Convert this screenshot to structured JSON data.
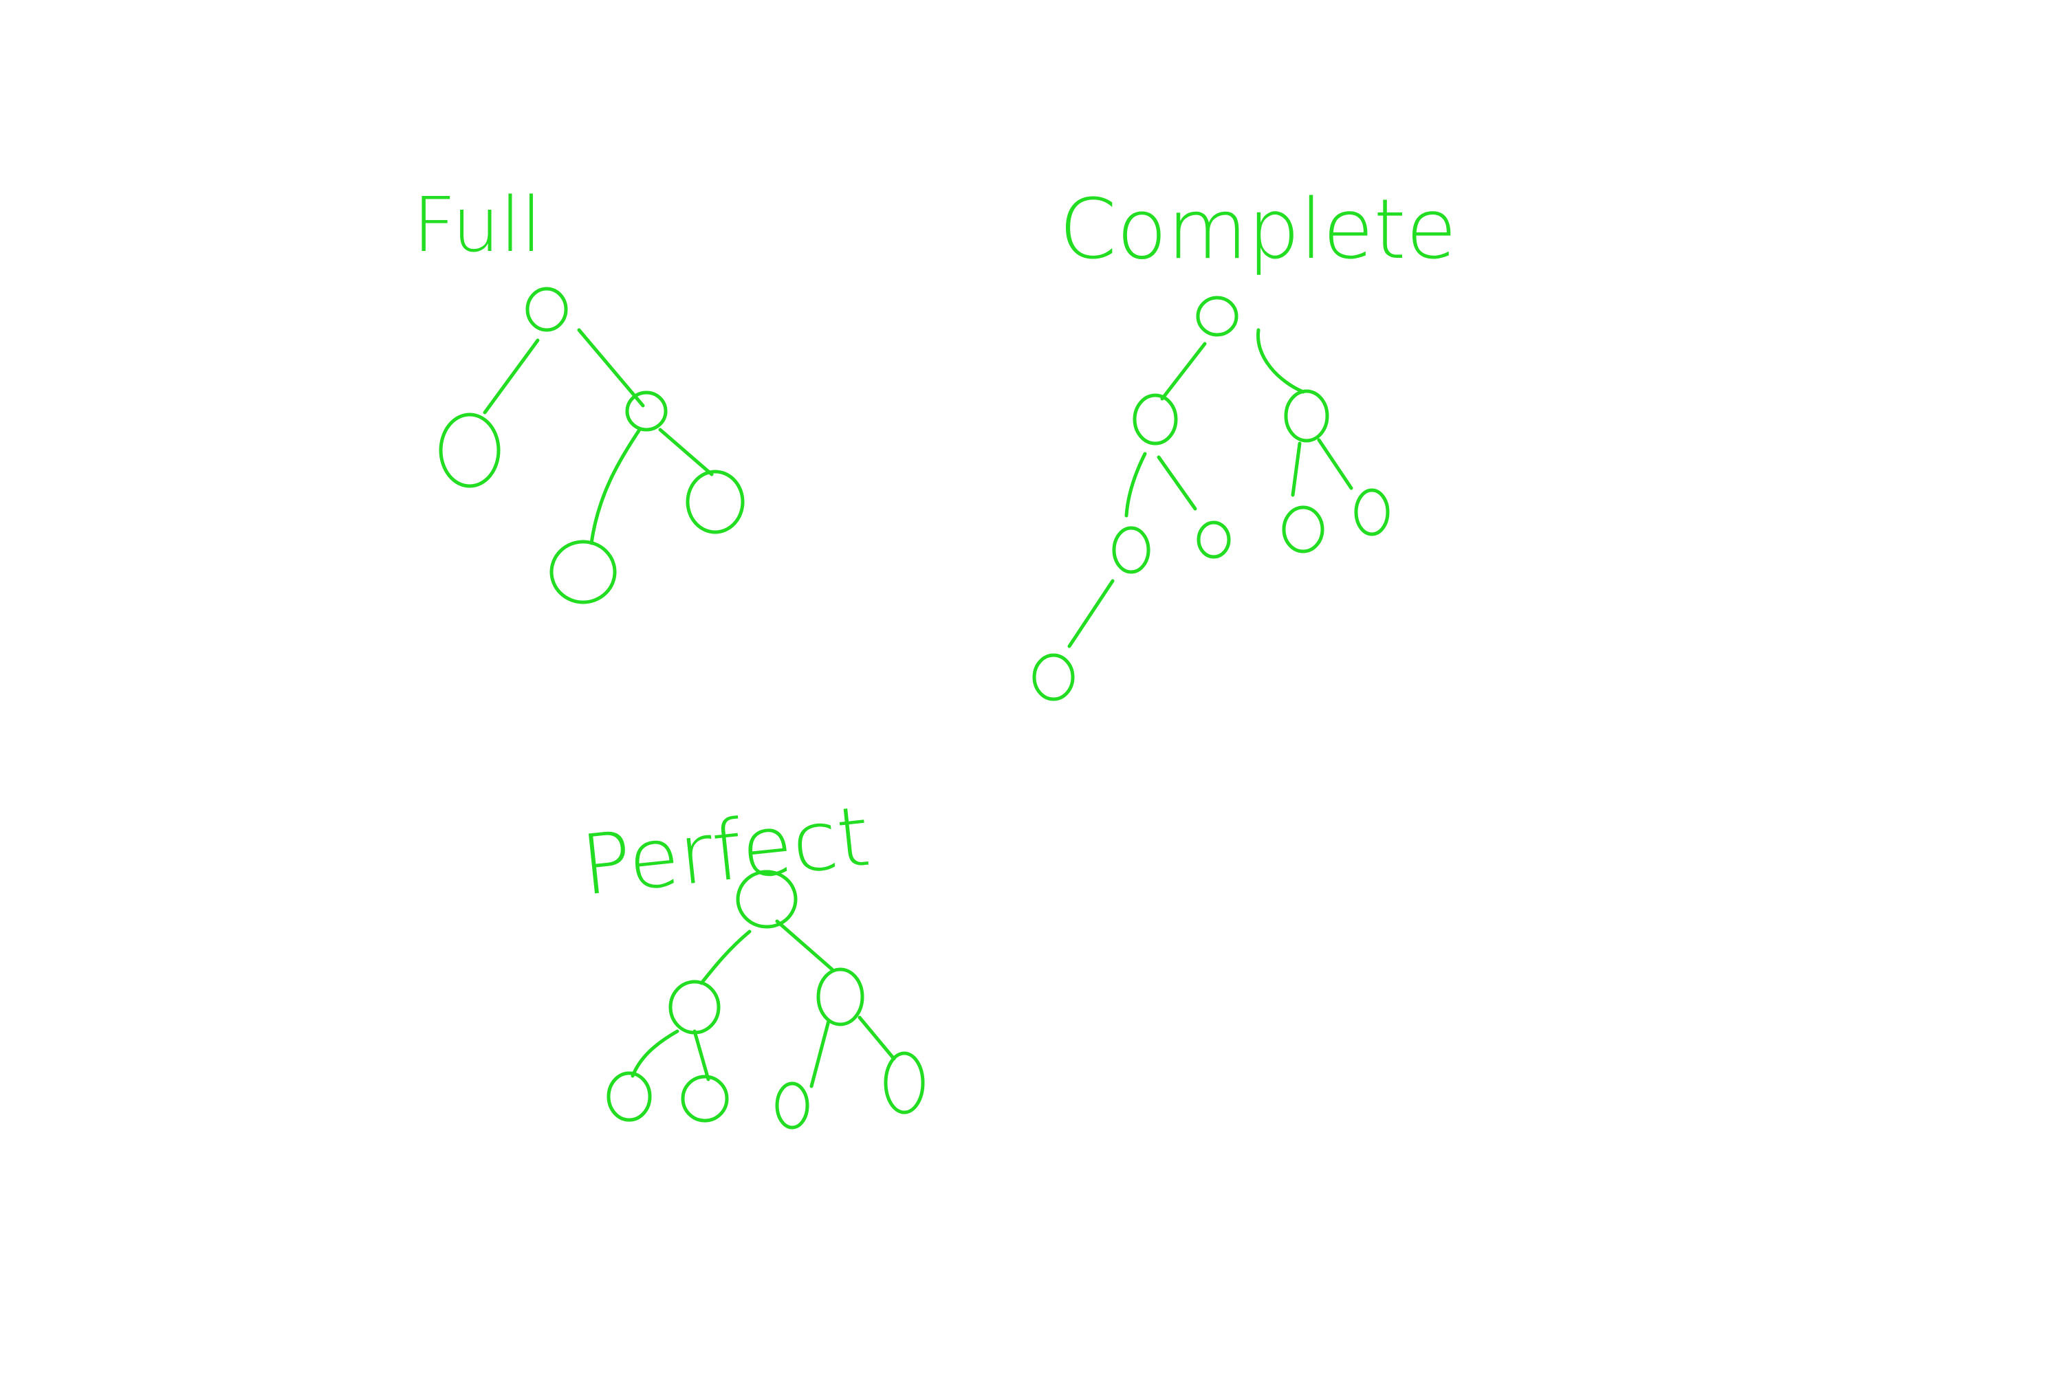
{
  "ink_color": "#22dd22",
  "trees": [
    {
      "id": "full",
      "label": "Full",
      "nodes": [
        {
          "id": "root"
        },
        {
          "id": "left-leaf"
        },
        {
          "id": "right-child"
        },
        {
          "id": "right-left-leaf"
        },
        {
          "id": "right-right-leaf"
        }
      ],
      "edges": [
        [
          "root",
          "left-leaf"
        ],
        [
          "root",
          "right-child"
        ],
        [
          "right-child",
          "right-left-leaf"
        ],
        [
          "right-child",
          "right-right-leaf"
        ]
      ]
    },
    {
      "id": "complete",
      "label": "Complete",
      "nodes": [
        {
          "id": "root"
        },
        {
          "id": "l"
        },
        {
          "id": "r"
        },
        {
          "id": "ll"
        },
        {
          "id": "lr"
        },
        {
          "id": "rl"
        },
        {
          "id": "rr"
        },
        {
          "id": "lll"
        }
      ],
      "edges": [
        [
          "root",
          "l"
        ],
        [
          "root",
          "r"
        ],
        [
          "l",
          "ll"
        ],
        [
          "l",
          "lr"
        ],
        [
          "r",
          "rl"
        ],
        [
          "r",
          "rr"
        ],
        [
          "ll",
          "lll"
        ]
      ]
    },
    {
      "id": "perfect",
      "label": "Perfect",
      "nodes": [
        {
          "id": "root"
        },
        {
          "id": "l"
        },
        {
          "id": "r"
        },
        {
          "id": "ll"
        },
        {
          "id": "lr"
        },
        {
          "id": "rl"
        },
        {
          "id": "rr"
        }
      ],
      "edges": [
        [
          "root",
          "l"
        ],
        [
          "root",
          "r"
        ],
        [
          "l",
          "ll"
        ],
        [
          "l",
          "lr"
        ],
        [
          "r",
          "rl"
        ],
        [
          "r",
          "rr"
        ]
      ]
    }
  ]
}
